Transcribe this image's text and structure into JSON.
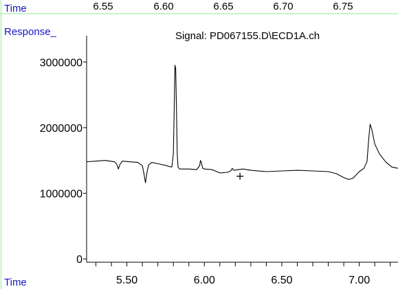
{
  "header": {
    "time_label": "Time",
    "response_label": "Response_",
    "top_ticks": [
      "6.55",
      "6.60",
      "6.65",
      "6.70",
      "6.75"
    ]
  },
  "footer": {
    "time_label": "Time"
  },
  "colors": {
    "label_blue": "#1515c8",
    "guide_green": "#90ee90",
    "trace": "#000000"
  },
  "chart_data": {
    "type": "line",
    "title": "Signal: PD067155.D\\ECD1A.ch",
    "xlabel": "Time",
    "ylabel": "Response_",
    "xlim": [
      5.24,
      7.25
    ],
    "ylim": [
      -50000,
      3400000
    ],
    "x_ticks": [
      5.5,
      6.0,
      6.5,
      7.0
    ],
    "x_tick_labels": [
      "5.50",
      "6.00",
      "6.50",
      "7.00"
    ],
    "y_ticks": [
      0,
      1000000,
      2000000,
      3000000
    ],
    "y_tick_labels": [
      "0",
      "1000000",
      "2000000",
      "3000000"
    ],
    "cursor_marker": {
      "x": 6.23,
      "y": 1260000,
      "symbol": "+"
    },
    "series": [
      {
        "values": [
          [
            5.24,
            1480000
          ],
          [
            5.3,
            1490000
          ],
          [
            5.36,
            1500000
          ],
          [
            5.42,
            1480000
          ],
          [
            5.435,
            1440000
          ],
          [
            5.445,
            1370000
          ],
          [
            5.455,
            1440000
          ],
          [
            5.47,
            1490000
          ],
          [
            5.52,
            1480000
          ],
          [
            5.57,
            1470000
          ],
          [
            5.6,
            1420000
          ],
          [
            5.61,
            1300000
          ],
          [
            5.62,
            1160000
          ],
          [
            5.63,
            1320000
          ],
          [
            5.64,
            1430000
          ],
          [
            5.66,
            1470000
          ],
          [
            5.7,
            1450000
          ],
          [
            5.74,
            1430000
          ],
          [
            5.77,
            1410000
          ],
          [
            5.79,
            1400000
          ],
          [
            5.8,
            1600000
          ],
          [
            5.805,
            2200000
          ],
          [
            5.81,
            2950000
          ],
          [
            5.815,
            2900000
          ],
          [
            5.82,
            2300000
          ],
          [
            5.825,
            1600000
          ],
          [
            5.83,
            1400000
          ],
          [
            5.84,
            1370000
          ],
          [
            5.9,
            1370000
          ],
          [
            5.95,
            1360000
          ],
          [
            5.97,
            1420000
          ],
          [
            5.975,
            1500000
          ],
          [
            5.98,
            1470000
          ],
          [
            5.99,
            1380000
          ],
          [
            6.0,
            1370000
          ],
          [
            6.05,
            1360000
          ],
          [
            6.1,
            1310000
          ],
          [
            6.15,
            1320000
          ],
          [
            6.17,
            1340000
          ],
          [
            6.18,
            1380000
          ],
          [
            6.19,
            1350000
          ],
          [
            6.22,
            1360000
          ],
          [
            6.25,
            1370000
          ],
          [
            6.3,
            1350000
          ],
          [
            6.4,
            1330000
          ],
          [
            6.5,
            1340000
          ],
          [
            6.6,
            1350000
          ],
          [
            6.7,
            1340000
          ],
          [
            6.8,
            1330000
          ],
          [
            6.85,
            1300000
          ],
          [
            6.9,
            1240000
          ],
          [
            6.93,
            1210000
          ],
          [
            6.96,
            1230000
          ],
          [
            7.0,
            1330000
          ],
          [
            7.03,
            1380000
          ],
          [
            7.05,
            1480000
          ],
          [
            7.06,
            1800000
          ],
          [
            7.07,
            2050000
          ],
          [
            7.08,
            1980000
          ],
          [
            7.1,
            1750000
          ],
          [
            7.13,
            1600000
          ],
          [
            7.17,
            1480000
          ],
          [
            7.21,
            1400000
          ],
          [
            7.25,
            1380000
          ]
        ]
      }
    ]
  }
}
